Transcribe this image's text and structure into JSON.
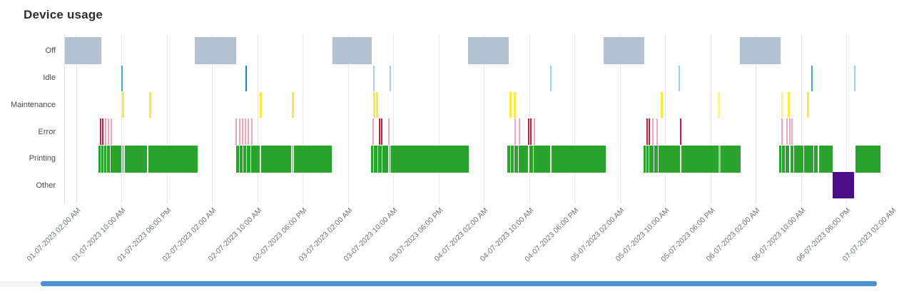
{
  "chart_data": {
    "type": "timeline",
    "title": "Device usage",
    "categories": [
      "Off",
      "Idle",
      "Maintenance",
      "Error",
      "Printing",
      "Other"
    ],
    "x_tick_labels": [
      "01-07-2023 02:00 AM",
      "01-07-2023 10:00 AM",
      "01-07-2023 06:00 PM",
      "02-07-2023 02:00 AM",
      "02-07-2023 10:00 AM",
      "02-07-2023 06:00 PM",
      "03-07-2023 02:00 AM",
      "03-07-2023 10:00 AM",
      "03-07-2023 06:00 PM",
      "04-07-2023 02:00 AM",
      "04-07-2023 10:00 AM",
      "04-07-2023 06:00 PM",
      "05-07-2023 02:00 AM",
      "05-07-2023 10:00 AM",
      "05-07-2023 06:00 PM",
      "06-07-2023 02:00 AM",
      "06-07-2023 10:00 AM",
      "06-07-2023 06:00 PM",
      "07-07-2023 02:00 AM"
    ],
    "x_axis": {
      "unit": "hours from 01-07-2023 00:00",
      "first_tick_hour": 2,
      "tick_interval_hours": 8,
      "visible_range_hours": [
        0,
        143.4
      ],
      "grid": true
    },
    "legend": "none",
    "series": {
      "off": {
        "segments": [
          [
            0.0,
            6.43
          ],
          [
            22.93,
            30.24
          ],
          [
            47.24,
            54.17
          ],
          [
            71.18,
            78.36
          ],
          [
            95.12,
            102.3
          ],
          [
            119.18,
            126.36
          ]
        ]
      },
      "idle": {
        "marks": [
          {
            "h": 10.08,
            "v": "medium"
          },
          {
            "h": 32.0,
            "v": "dark"
          },
          {
            "h": 54.55,
            "v": "light"
          },
          {
            "h": 57.45,
            "v": "light"
          },
          {
            "h": 85.79,
            "v": "light"
          },
          {
            "h": 108.47,
            "v": "light"
          },
          {
            "h": 131.91,
            "v": "medium"
          },
          {
            "h": 139.47,
            "v": "light"
          }
        ]
      },
      "maintenance": {
        "marks": [
          {
            "h": 10.2,
            "v": "bright"
          },
          {
            "h": 15.0,
            "v": "bright"
          },
          {
            "h": 34.52,
            "v": "bright"
          },
          {
            "h": 40.19,
            "v": "bright"
          },
          {
            "h": 54.55,
            "v": "bright"
          },
          {
            "h": 55.05,
            "v": "bright"
          },
          {
            "h": 78.61,
            "v": "bright"
          },
          {
            "h": 79.37,
            "v": "bright"
          },
          {
            "h": 105.32,
            "v": "bright"
          },
          {
            "h": 115.52,
            "v": "pale"
          },
          {
            "h": 126.61,
            "v": "pale"
          },
          {
            "h": 127.75,
            "v": "bright"
          },
          {
            "h": 131.15,
            "v": "bright"
          }
        ]
      },
      "error": {
        "marks": [
          {
            "h": 6.3,
            "v": "crimson"
          },
          {
            "h": 6.68,
            "v": "crimson"
          },
          {
            "h": 7.18,
            "v": "pink"
          },
          {
            "h": 7.69,
            "v": "pink"
          },
          {
            "h": 8.19,
            "v": "pink"
          },
          {
            "h": 30.24,
            "v": "pink"
          },
          {
            "h": 30.87,
            "v": "pink"
          },
          {
            "h": 31.37,
            "v": "pink"
          },
          {
            "h": 31.87,
            "v": "pink"
          },
          {
            "h": 32.38,
            "v": "pink"
          },
          {
            "h": 33.01,
            "v": "pink"
          },
          {
            "h": 54.43,
            "v": "pink"
          },
          {
            "h": 55.56,
            "v": "crimson"
          },
          {
            "h": 55.94,
            "v": "crimson"
          },
          {
            "h": 57.2,
            "v": "pink"
          },
          {
            "h": 79.5,
            "v": "pink"
          },
          {
            "h": 80.25,
            "v": "pink"
          },
          {
            "h": 81.89,
            "v": "crimson"
          },
          {
            "h": 82.27,
            "v": "crimson"
          },
          {
            "h": 82.9,
            "v": "pink"
          },
          {
            "h": 102.8,
            "v": "crimson"
          },
          {
            "h": 103.18,
            "v": "crimson"
          },
          {
            "h": 103.81,
            "v": "pink"
          },
          {
            "h": 104.57,
            "v": "pink"
          },
          {
            "h": 108.72,
            "v": "crimson"
          },
          {
            "h": 126.61,
            "v": "pink"
          },
          {
            "h": 127.5,
            "v": "pink"
          },
          {
            "h": 128.0,
            "v": "pink"
          },
          {
            "h": 128.38,
            "v": "pink"
          }
        ]
      },
      "printing": {
        "segments": [
          [
            5.92,
            6.3
          ],
          [
            6.43,
            6.8
          ],
          [
            6.93,
            7.31
          ],
          [
            7.43,
            7.94
          ],
          [
            8.06,
            9.95
          ],
          [
            10.08,
            10.46,
            "light"
          ],
          [
            10.58,
            14.49
          ],
          [
            14.74,
            23.43
          ],
          [
            30.24,
            30.74
          ],
          [
            30.87,
            31.37
          ],
          [
            31.5,
            32.0
          ],
          [
            32.13,
            32.76
          ],
          [
            32.88,
            34.39
          ],
          [
            34.65,
            39.94
          ],
          [
            40.06,
            40.31,
            "light"
          ],
          [
            40.44,
            47.12
          ],
          [
            54.05,
            54.43
          ],
          [
            54.55,
            55.18
          ],
          [
            55.31,
            55.94
          ],
          [
            56.06,
            57.07
          ],
          [
            57.2,
            57.58,
            "light"
          ],
          [
            57.58,
            71.31
          ],
          [
            78.11,
            78.61
          ],
          [
            78.74,
            79.24
          ],
          [
            79.37,
            80.0
          ],
          [
            80.13,
            81.76
          ],
          [
            82.02,
            82.65
          ],
          [
            82.77,
            85.67
          ],
          [
            85.92,
            95.5
          ],
          [
            102.17,
            102.55
          ],
          [
            102.68,
            103.06
          ],
          [
            103.18,
            103.94
          ],
          [
            104.06,
            104.69
          ],
          [
            104.82,
            108.6
          ],
          [
            108.85,
            115.4
          ],
          [
            115.4,
            115.78,
            "light"
          ],
          [
            115.78,
            119.31
          ],
          [
            126.11,
            126.49
          ],
          [
            126.61,
            127.12
          ],
          [
            127.24,
            127.87
          ],
          [
            128.13,
            128.63
          ],
          [
            128.76,
            130.39
          ],
          [
            130.52,
            132.16
          ],
          [
            132.28,
            132.91
          ],
          [
            133.17,
            135.56
          ],
          [
            139.6,
            144.0
          ]
        ]
      },
      "other": {
        "segments": [
          [
            135.56,
            139.34
          ]
        ]
      }
    }
  },
  "colors": {
    "off": "#b3c1d1",
    "idle_light": "#a3cdee",
    "idle_medium": "#4aa4dc",
    "idle_dark": "#1d80cf",
    "maintenance_bright": "#ffe93d",
    "maintenance_pale": "#fcf195",
    "error_crimson": "#c12045",
    "error_pink": "#efa6ba",
    "printing": "#2ba42e",
    "printing_light": "#98d19a",
    "other": "#4c0d87",
    "grid": "#e8e8e8",
    "axis_text": "#6c7075",
    "category_text": "#4a4a4a",
    "title_text": "#2e2e2e",
    "scrollbar_thumb": "#4e8fd0",
    "scrollbar_track": "#f5f5f5"
  }
}
